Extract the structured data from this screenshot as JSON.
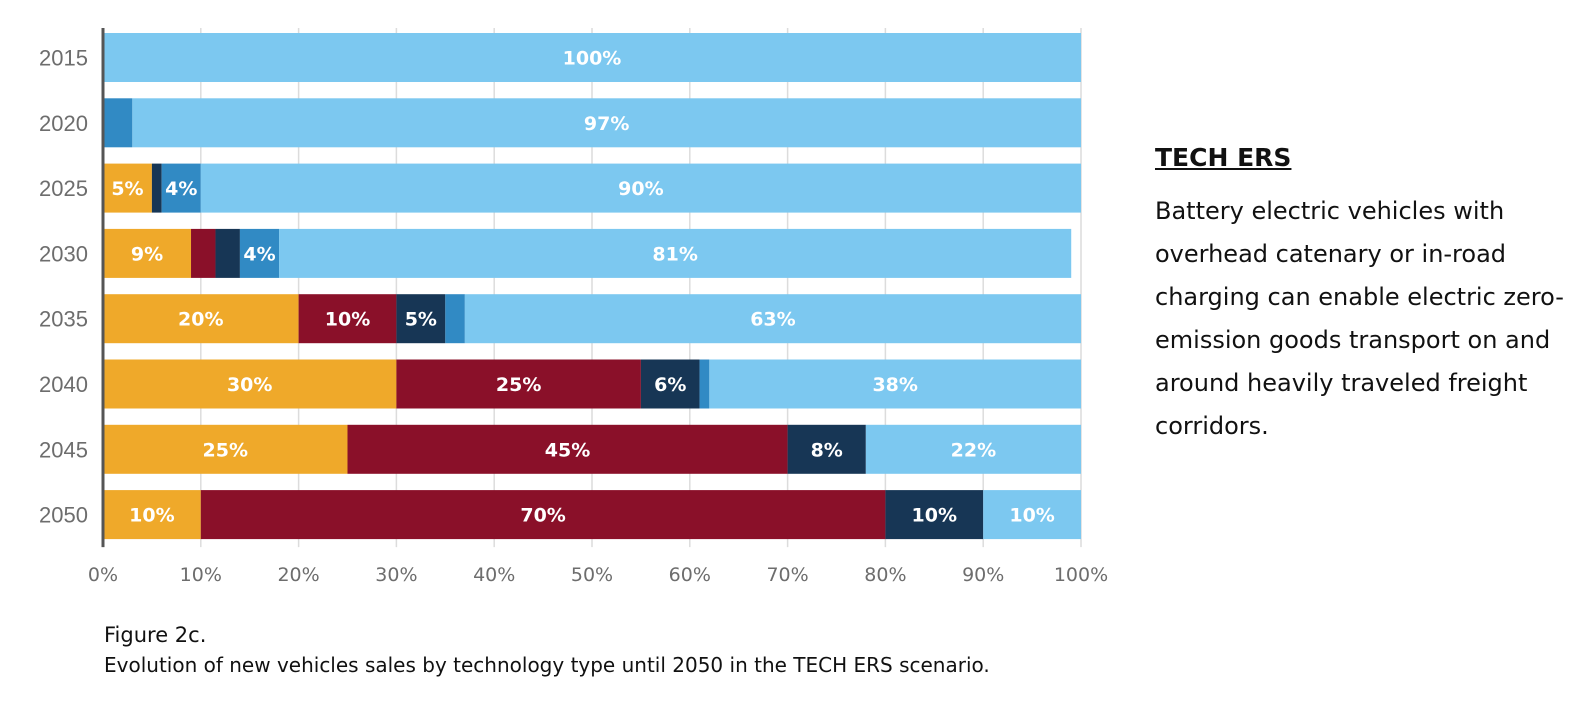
{
  "chart_data": {
    "type": "bar",
    "orientation": "horizontal",
    "stacked": true,
    "title": "TECH ERS",
    "xlabel": "",
    "ylabel": "",
    "xlim": [
      0,
      100
    ],
    "x_tick_labels": [
      "0%",
      "10%",
      "20%",
      "30%",
      "40%",
      "50%",
      "60%",
      "70%",
      "80%",
      "90%",
      "100%"
    ],
    "grid": "vertical",
    "legend": "none",
    "categories": [
      "2015",
      "2020",
      "2025",
      "2030",
      "2035",
      "2040",
      "2045",
      "2050"
    ],
    "series": [
      {
        "name": "orange",
        "color": "#EFA92A",
        "values": [
          0,
          0,
          5,
          9,
          20,
          30,
          25,
          10
        ],
        "labels": [
          "",
          "",
          "5%",
          "9%",
          "20%",
          "30%",
          "25%",
          "10%"
        ]
      },
      {
        "name": "maroon",
        "color": "#8A1029",
        "values": [
          0,
          0,
          0,
          2.5,
          10,
          25,
          45,
          70
        ],
        "labels": [
          "",
          "",
          "",
          "",
          "10%",
          "25%",
          "45%",
          "70%"
        ]
      },
      {
        "name": "navy",
        "color": "#173655",
        "values": [
          0,
          0,
          1,
          2.5,
          5,
          6,
          8,
          10
        ],
        "labels": [
          "",
          "",
          "",
          "",
          "5%",
          "6%",
          "8%",
          "10%"
        ]
      },
      {
        "name": "mid-blue",
        "color": "#318AC4",
        "values": [
          0,
          3,
          4,
          4,
          2,
          1,
          0,
          0
        ],
        "labels": [
          "",
          "",
          "4%",
          "4%",
          "",
          "",
          "",
          ""
        ]
      },
      {
        "name": "light-blue",
        "color": "#7CC8F0",
        "values": [
          100,
          97,
          90,
          81,
          63,
          38,
          22,
          10
        ],
        "labels": [
          "100%",
          "97%",
          "90%",
          "81%",
          "63%",
          "38%",
          "22%",
          "10%"
        ]
      }
    ]
  },
  "side_panel": {
    "title": "TECH ERS",
    "body": "Battery electric vehicles with overhead catenary or in-road charging can enable electric zero-emission goods transport on and around heavily traveled freight corridors."
  },
  "caption": {
    "figure": "Figure 2c.",
    "description": "Evolution of new vehicles sales by technology type until 2050 in the TECH ERS scenario."
  }
}
